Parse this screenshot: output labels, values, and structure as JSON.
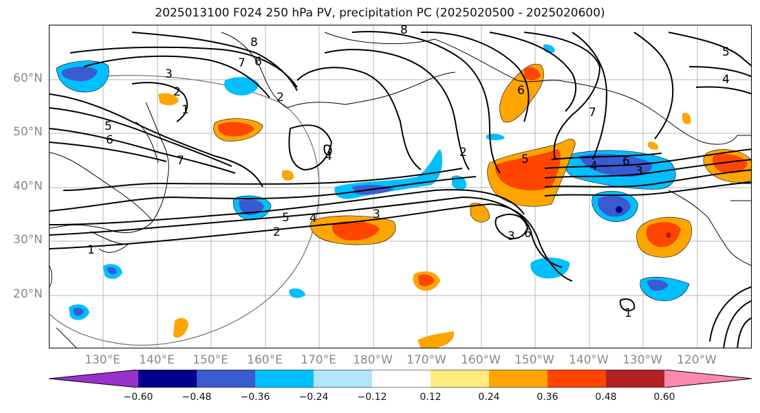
{
  "title": "2025013100 F024 250 hPa PV, precipitation PC (2025020500 - 2025020600)",
  "lat_labels": [
    "60°N",
    "50°N",
    "40°N",
    "30°N",
    "20°N"
  ],
  "lon_labels": [
    "130°E",
    "140°E",
    "150°E",
    "160°E",
    "170°E",
    "180°W",
    "170°W",
    "160°W",
    "150°W",
    "140°W",
    "130°W",
    "120°W"
  ],
  "colorbar": {
    "colors": [
      "#9932cc",
      "#00008b",
      "#3a5bd0",
      "#00bfff",
      "#b3e5fc",
      "#ffffff",
      "#ffeb80",
      "#ffa500",
      "#ff4500",
      "#b22222",
      "#ff88b0"
    ],
    "ticks": [
      "−0.60",
      "−0.48",
      "−0.36",
      "−0.24",
      "−0.12",
      "0.12",
      "0.24",
      "0.36",
      "0.48",
      "0.60"
    ]
  },
  "contour_labels": [
    "8",
    "7",
    "6",
    "3",
    "2",
    "1",
    "5",
    "6",
    "7",
    "2",
    "4",
    "5",
    "2",
    "4",
    "3",
    "1",
    "8",
    "6",
    "5",
    "4",
    "3",
    "6",
    "4",
    "5",
    "3",
    "1",
    "2",
    "6",
    "7"
  ]
}
